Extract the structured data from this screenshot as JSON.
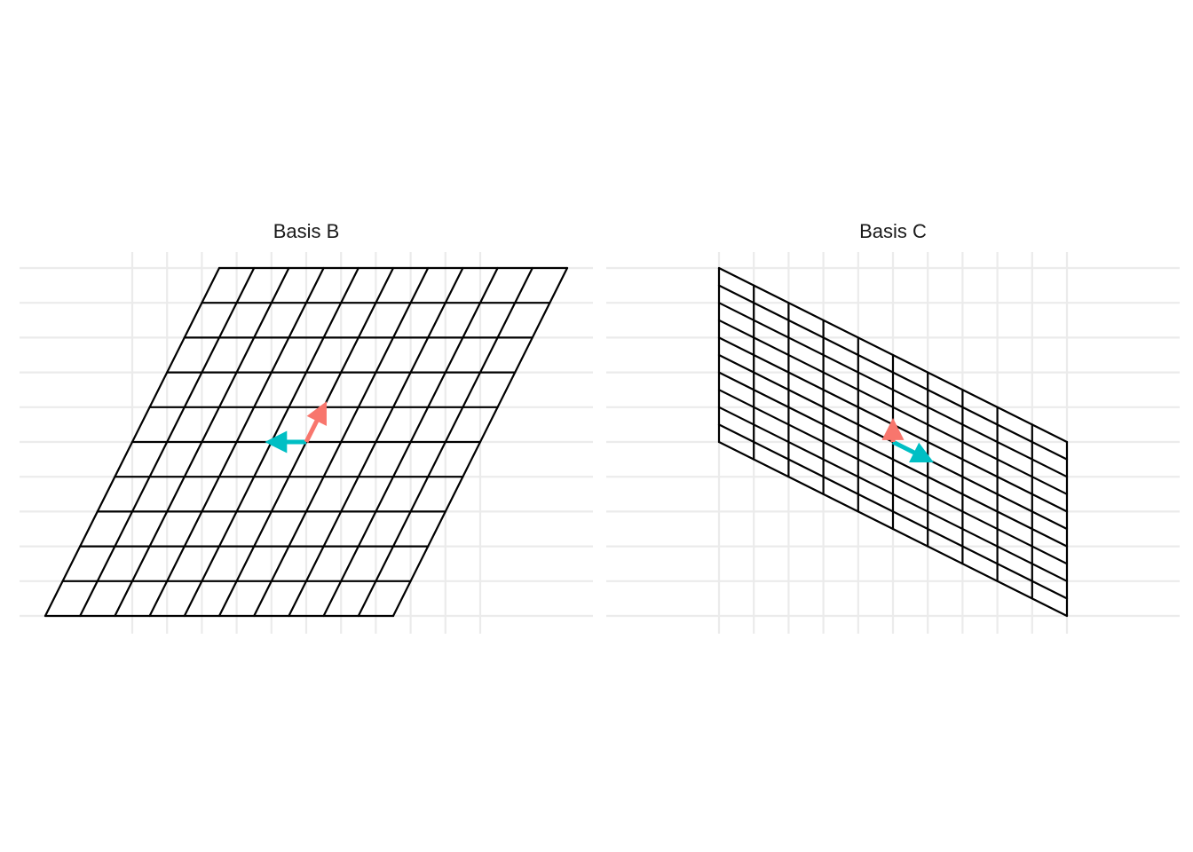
{
  "chart_data": [
    {
      "type": "line",
      "title": "Basis B",
      "grid": true,
      "xlim": [
        -7.6,
        8.4
      ],
      "ylim": [
        -5.2,
        5.2
      ],
      "grid_range": [
        -5,
        5
      ],
      "basis": {
        "b1": [
          -1,
          0
        ],
        "b2": [
          0.5,
          1
        ]
      },
      "vectors": [
        {
          "name": "b1",
          "from": [
            0,
            0
          ],
          "to": [
            -1,
            0
          ],
          "color": "#00BFC4"
        },
        {
          "name": "b2",
          "from": [
            0,
            0
          ],
          "to": [
            0.5,
            1
          ],
          "color": "#F8766D"
        }
      ]
    },
    {
      "type": "line",
      "title": "Basis C",
      "grid": true,
      "xlim": [
        -7.6,
        8.4
      ],
      "ylim": [
        -5.2,
        5.2
      ],
      "grid_range": [
        -5,
        5
      ],
      "basis": {
        "c1": [
          1,
          -0.5
        ],
        "c2": [
          0,
          0.5
        ]
      },
      "vectors": [
        {
          "name": "c1",
          "from": [
            0,
            0
          ],
          "to": [
            1,
            -0.5
          ],
          "color": "#00BFC4"
        },
        {
          "name": "c2",
          "from": [
            0,
            0
          ],
          "to": [
            0,
            0.5
          ],
          "color": "#F8766D"
        }
      ]
    }
  ],
  "colors": {
    "grid": "#ebebeb",
    "lattice": "#000000",
    "title": "#1a1a1a"
  }
}
